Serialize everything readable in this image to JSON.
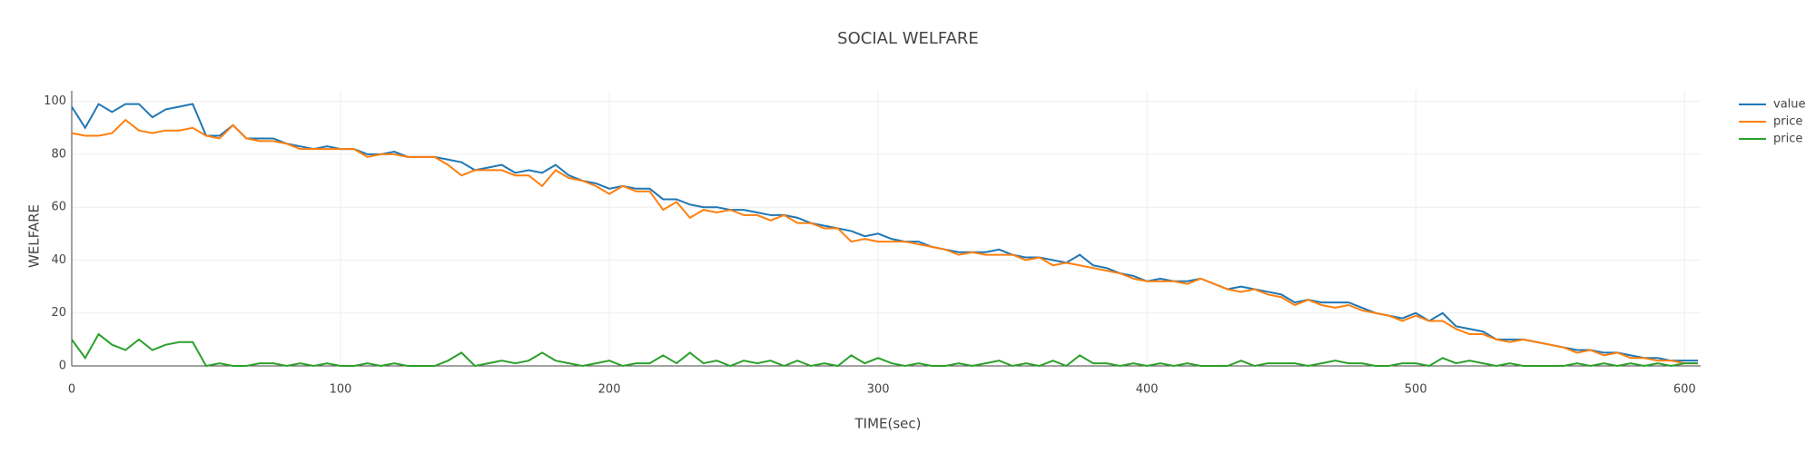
{
  "chart_data": {
    "type": "line",
    "title": "SOCIAL WELFARE",
    "x_label": "TIME(sec)",
    "y_label": "WELFARE",
    "x": [
      0,
      5,
      10,
      15,
      20,
      25,
      30,
      35,
      40,
      45,
      50,
      55,
      60,
      65,
      70,
      75,
      80,
      85,
      90,
      95,
      100,
      105,
      110,
      115,
      120,
      125,
      130,
      135,
      140,
      145,
      150,
      155,
      160,
      165,
      170,
      175,
      180,
      185,
      190,
      195,
      200,
      205,
      210,
      215,
      220,
      225,
      230,
      235,
      240,
      245,
      250,
      255,
      260,
      265,
      270,
      275,
      280,
      285,
      290,
      295,
      300,
      305,
      310,
      315,
      320,
      325,
      330,
      335,
      340,
      345,
      350,
      355,
      360,
      365,
      370,
      375,
      380,
      385,
      390,
      395,
      400,
      405,
      410,
      415,
      420,
      425,
      430,
      435,
      440,
      445,
      450,
      455,
      460,
      465,
      470,
      475,
      480,
      485,
      490,
      495,
      500,
      505,
      510,
      515,
      520,
      525,
      530,
      535,
      540,
      545,
      550,
      555,
      560,
      565,
      570,
      575,
      580,
      585,
      590,
      595,
      600,
      605
    ],
    "series": [
      {
        "name": "value",
        "color": "#1f77b4",
        "values": [
          98,
          90,
          99,
          96,
          99,
          99,
          94,
          97,
          98,
          99,
          87,
          87,
          91,
          86,
          86,
          86,
          84,
          83,
          82,
          83,
          82,
          82,
          80,
          80,
          81,
          79,
          79,
          79,
          78,
          77,
          74,
          75,
          76,
          73,
          74,
          73,
          76,
          72,
          70,
          69,
          67,
          68,
          67,
          67,
          63,
          63,
          61,
          60,
          60,
          59,
          59,
          58,
          57,
          57,
          56,
          54,
          53,
          52,
          51,
          49,
          50,
          48,
          47,
          47,
          45,
          44,
          43,
          43,
          43,
          44,
          42,
          41,
          41,
          40,
          39,
          42,
          38,
          37,
          35,
          34,
          32,
          33,
          32,
          32,
          33,
          31,
          29,
          30,
          29,
          28,
          27,
          24,
          25,
          24,
          24,
          24,
          22,
          20,
          19,
          18,
          20,
          17,
          20,
          15,
          14,
          13,
          10,
          10,
          10,
          9,
          8,
          7,
          6,
          6,
          5,
          5,
          4,
          3,
          3,
          2,
          2,
          2
        ]
      },
      {
        "name": "price",
        "color": "#ff7f0e",
        "values": [
          88,
          87,
          87,
          88,
          93,
          89,
          88,
          89,
          89,
          90,
          87,
          86,
          91,
          86,
          85,
          85,
          84,
          82,
          82,
          82,
          82,
          82,
          79,
          80,
          80,
          79,
          79,
          79,
          76,
          72,
          74,
          74,
          74,
          72,
          72,
          68,
          74,
          71,
          70,
          68,
          65,
          68,
          66,
          66,
          59,
          62,
          56,
          59,
          58,
          59,
          57,
          57,
          55,
          57,
          54,
          54,
          52,
          52,
          47,
          48,
          47,
          47,
          47,
          46,
          45,
          44,
          42,
          43,
          42,
          42,
          42,
          40,
          41,
          38,
          39,
          38,
          37,
          36,
          35,
          33,
          32,
          32,
          32,
          31,
          33,
          31,
          29,
          28,
          29,
          27,
          26,
          23,
          25,
          23,
          22,
          23,
          21,
          20,
          19,
          17,
          19,
          17,
          17,
          14,
          12,
          12,
          10,
          9,
          10,
          9,
          8,
          7,
          5,
          6,
          4,
          5,
          3,
          3,
          2,
          2,
          1,
          1
        ]
      },
      {
        "name": "price",
        "color": "#2ca02c",
        "values": [
          10,
          3,
          12,
          8,
          6,
          10,
          6,
          8,
          9,
          9,
          0,
          1,
          0,
          0,
          1,
          1,
          0,
          1,
          0,
          1,
          0,
          0,
          1,
          0,
          1,
          0,
          0,
          0,
          2,
          5,
          0,
          1,
          2,
          1,
          2,
          5,
          2,
          1,
          0,
          1,
          2,
          0,
          1,
          1,
          4,
          1,
          5,
          1,
          2,
          0,
          2,
          1,
          2,
          0,
          2,
          0,
          1,
          0,
          4,
          1,
          3,
          1,
          0,
          1,
          0,
          0,
          1,
          0,
          1,
          2,
          0,
          1,
          0,
          2,
          0,
          4,
          1,
          1,
          0,
          1,
          0,
          1,
          0,
          1,
          0,
          0,
          0,
          2,
          0,
          1,
          1,
          1,
          0,
          1,
          2,
          1,
          1,
          0,
          0,
          1,
          1,
          0,
          3,
          1,
          2,
          1,
          0,
          1,
          0,
          0,
          0,
          0,
          1,
          0,
          1,
          0,
          1,
          0,
          1,
          0,
          1,
          1
        ]
      }
    ],
    "xlim": [
      0,
      606
    ],
    "ylim": [
      0,
      104
    ],
    "xticks": [
      0,
      100,
      200,
      300,
      400,
      500,
      600
    ],
    "yticks": [
      0,
      20,
      40,
      60,
      80,
      100
    ],
    "grid": true
  }
}
